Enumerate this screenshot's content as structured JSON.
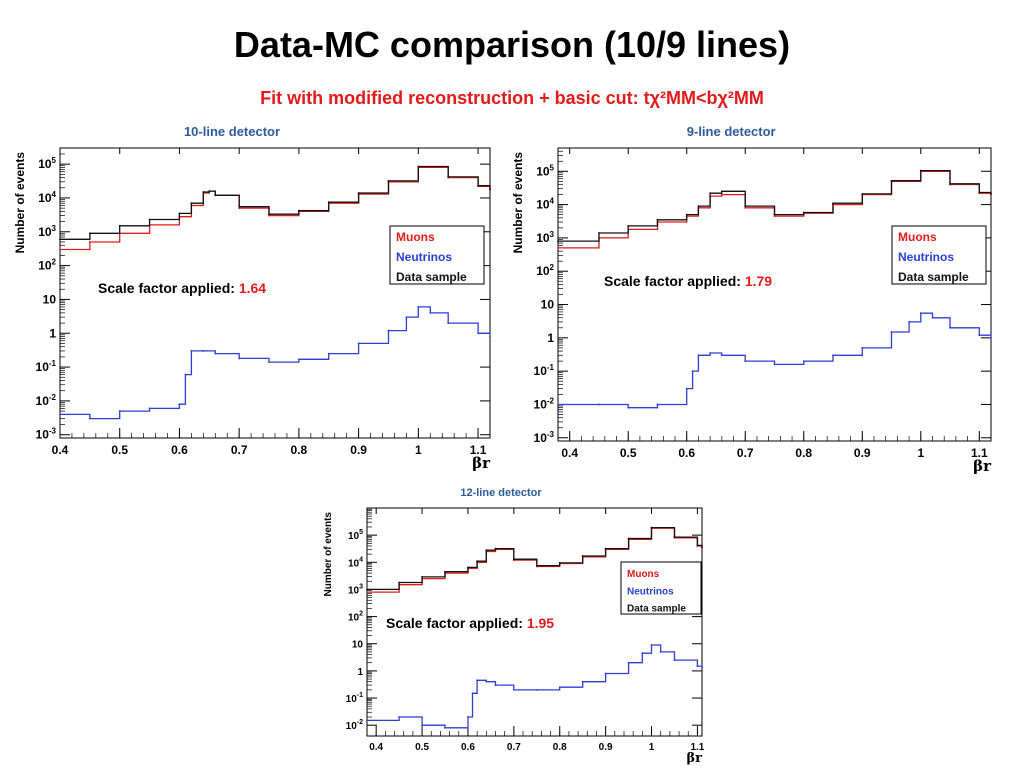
{
  "slide": {
    "title": "Data-MC comparison (10/9 lines)",
    "subtitle": "Fit with modified reconstruction + basic cut: tχ²MM<bχ²MM"
  },
  "colors": {
    "muons": "#e41a1a",
    "neutrinos": "#2b3fd6",
    "data": "#111111",
    "title": "#2f5b9a",
    "accent": "#e41a1a"
  },
  "chart_data": [
    {
      "type": "line",
      "title": "10-line detector",
      "xlabel": "βr",
      "ylabel": "Number of events",
      "xlim": [
        0.4,
        1.12
      ],
      "ylim": [
        0.0008,
        300000
      ],
      "yscale": "log",
      "xticks": [
        "0.4",
        "0.5",
        "0.6",
        "0.7",
        "0.8",
        "0.9",
        "1",
        "1.1"
      ],
      "yticks": [
        {
          "base": "10",
          "exp": "-3",
          "v": 0.001
        },
        {
          "base": "10",
          "exp": "-2",
          "v": 0.01
        },
        {
          "base": "10",
          "exp": "-1",
          "v": 0.1
        },
        {
          "base": "1",
          "exp": "",
          "v": 1
        },
        {
          "base": "10",
          "exp": "",
          "v": 10
        },
        {
          "base": "10",
          "exp": "2",
          "v": 100
        },
        {
          "base": "10",
          "exp": "3",
          "v": 1000
        },
        {
          "base": "10",
          "exp": "4",
          "v": 10000
        },
        {
          "base": "10",
          "exp": "5",
          "v": 100000
        }
      ],
      "legend": {
        "position": "right",
        "entries": [
          "Muons",
          "Neutrinos",
          "Data sample"
        ]
      },
      "scale_label": "Scale factor applied: ",
      "scale_value": "1.64",
      "series": [
        {
          "name": "Muons",
          "color": "#e41a1a",
          "x": [
            0.4,
            0.45,
            0.5,
            0.55,
            0.6,
            0.62,
            0.64,
            0.65,
            0.66,
            0.7,
            0.75,
            0.8,
            0.85,
            0.9,
            0.95,
            1.0,
            1.05,
            1.1,
            1.12
          ],
          "y": [
            300,
            500,
            900,
            1600,
            2800,
            6000,
            14000,
            16000,
            12000,
            5000,
            3000,
            4000,
            7000,
            13000,
            30000,
            80000,
            40000,
            22000,
            17000
          ]
        },
        {
          "name": "Data sample",
          "color": "#111111",
          "x": [
            0.4,
            0.45,
            0.5,
            0.55,
            0.6,
            0.62,
            0.64,
            0.65,
            0.66,
            0.7,
            0.75,
            0.8,
            0.85,
            0.9,
            0.95,
            1.0,
            1.05,
            1.1,
            1.12
          ],
          "y": [
            600,
            900,
            1500,
            2300,
            3500,
            7000,
            15000,
            16000,
            12000,
            5500,
            3300,
            4200,
            7500,
            14000,
            32000,
            85000,
            42000,
            23000,
            18000
          ]
        },
        {
          "name": "Neutrinos",
          "color": "#2b3fd6",
          "x": [
            0.4,
            0.45,
            0.5,
            0.55,
            0.6,
            0.61,
            0.62,
            0.64,
            0.66,
            0.7,
            0.75,
            0.8,
            0.85,
            0.9,
            0.95,
            0.98,
            1.0,
            1.02,
            1.05,
            1.1,
            1.12
          ],
          "y": [
            0.004,
            0.003,
            0.005,
            0.006,
            0.008,
            0.06,
            0.3,
            0.3,
            0.25,
            0.18,
            0.14,
            0.17,
            0.25,
            0.5,
            1.2,
            3.0,
            6.0,
            4.0,
            2.0,
            1.0,
            0.8
          ]
        }
      ]
    },
    {
      "type": "line",
      "title": "9-line detector",
      "xlabel": "βr",
      "ylabel": "Number of events",
      "xlim": [
        0.38,
        1.12
      ],
      "ylim": [
        0.0008,
        500000
      ],
      "yscale": "log",
      "xticks": [
        "0.4",
        "0.5",
        "0.6",
        "0.7",
        "0.8",
        "0.9",
        "1",
        "1.1"
      ],
      "yticks": [
        {
          "base": "10",
          "exp": "-3",
          "v": 0.001
        },
        {
          "base": "10",
          "exp": "-2",
          "v": 0.01
        },
        {
          "base": "10",
          "exp": "-1",
          "v": 0.1
        },
        {
          "base": "1",
          "exp": "",
          "v": 1
        },
        {
          "base": "10",
          "exp": "",
          "v": 10
        },
        {
          "base": "10",
          "exp": "2",
          "v": 100
        },
        {
          "base": "10",
          "exp": "3",
          "v": 1000
        },
        {
          "base": "10",
          "exp": "4",
          "v": 10000
        },
        {
          "base": "10",
          "exp": "5",
          "v": 100000
        }
      ],
      "legend": {
        "position": "right",
        "entries": [
          "Muons",
          "Neutrinos",
          "Data sample"
        ]
      },
      "scale_label": "Scale factor applied: ",
      "scale_value": "1.79",
      "series": [
        {
          "name": "Muons",
          "color": "#e41a1a",
          "x": [
            0.38,
            0.45,
            0.5,
            0.55,
            0.6,
            0.62,
            0.64,
            0.66,
            0.7,
            0.75,
            0.8,
            0.85,
            0.9,
            0.95,
            1.0,
            1.05,
            1.1,
            1.12
          ],
          "y": [
            500,
            1000,
            1800,
            3000,
            4500,
            8000,
            18000,
            20000,
            8000,
            4500,
            5500,
            10000,
            20000,
            50000,
            100000,
            40000,
            22000,
            20000
          ]
        },
        {
          "name": "Data sample",
          "color": "#111111",
          "x": [
            0.38,
            0.45,
            0.5,
            0.55,
            0.6,
            0.62,
            0.64,
            0.66,
            0.7,
            0.75,
            0.8,
            0.85,
            0.9,
            0.95,
            1.0,
            1.05,
            1.1,
            1.12
          ],
          "y": [
            800,
            1400,
            2300,
            3500,
            5000,
            9000,
            22000,
            25000,
            9000,
            5000,
            5800,
            11000,
            21000,
            52000,
            105000,
            42000,
            23000,
            21000
          ]
        },
        {
          "name": "Neutrinos",
          "color": "#2b3fd6",
          "x": [
            0.38,
            0.45,
            0.5,
            0.55,
            0.6,
            0.61,
            0.62,
            0.64,
            0.66,
            0.7,
            0.75,
            0.8,
            0.85,
            0.9,
            0.95,
            0.98,
            1.0,
            1.02,
            1.05,
            1.1,
            1.12
          ],
          "y": [
            0.01,
            0.01,
            0.008,
            0.01,
            0.03,
            0.1,
            0.3,
            0.35,
            0.3,
            0.2,
            0.16,
            0.2,
            0.3,
            0.5,
            1.5,
            3.0,
            5.5,
            4.0,
            2.0,
            1.2,
            1.0
          ]
        }
      ]
    },
    {
      "type": "line",
      "title": "12-line detector",
      "xlabel": "βr",
      "ylabel": "Number of events",
      "xlim": [
        0.38,
        1.11
      ],
      "ylim": [
        0.004,
        1000000
      ],
      "yscale": "log",
      "xticks": [
        "0.4",
        "0.5",
        "0.6",
        "0.7",
        "0.8",
        "0.9",
        "1",
        "1.1"
      ],
      "yticks": [
        {
          "base": "10",
          "exp": "-2",
          "v": 0.01
        },
        {
          "base": "10",
          "exp": "-1",
          "v": 0.1
        },
        {
          "base": "1",
          "exp": "",
          "v": 1
        },
        {
          "base": "10",
          "exp": "",
          "v": 10
        },
        {
          "base": "10",
          "exp": "2",
          "v": 100
        },
        {
          "base": "10",
          "exp": "3",
          "v": 1000
        },
        {
          "base": "10",
          "exp": "4",
          "v": 10000
        },
        {
          "base": "10",
          "exp": "5",
          "v": 100000
        }
      ],
      "legend": {
        "position": "right",
        "entries": [
          "Muons",
          "Neutrinos",
          "Data sample"
        ]
      },
      "scale_label": "Scale factor applied: ",
      "scale_value": "1.95",
      "series": [
        {
          "name": "Muons",
          "color": "#e41a1a",
          "x": [
            0.38,
            0.45,
            0.5,
            0.55,
            0.6,
            0.62,
            0.64,
            0.66,
            0.7,
            0.75,
            0.8,
            0.85,
            0.9,
            0.95,
            1.0,
            1.05,
            1.1,
            1.11
          ],
          "y": [
            800,
            1500,
            2500,
            4000,
            6000,
            10000,
            25000,
            30000,
            12000,
            7000,
            9000,
            16000,
            30000,
            70000,
            180000,
            80000,
            40000,
            35000
          ]
        },
        {
          "name": "Data sample",
          "color": "#111111",
          "x": [
            0.38,
            0.45,
            0.5,
            0.55,
            0.6,
            0.62,
            0.64,
            0.66,
            0.7,
            0.75,
            0.8,
            0.85,
            0.9,
            0.95,
            1.0,
            1.05,
            1.1,
            1.11
          ],
          "y": [
            1000,
            1800,
            2900,
            4500,
            6500,
            11000,
            28000,
            32000,
            13000,
            7500,
            9500,
            17000,
            32000,
            75000,
            190000,
            85000,
            42000,
            36000
          ]
        },
        {
          "name": "Neutrinos",
          "color": "#2b3fd6",
          "x": [
            0.38,
            0.45,
            0.5,
            0.55,
            0.6,
            0.61,
            0.62,
            0.64,
            0.66,
            0.7,
            0.75,
            0.8,
            0.85,
            0.9,
            0.95,
            0.98,
            1.0,
            1.02,
            1.05,
            1.1,
            1.11
          ],
          "y": [
            0.015,
            0.02,
            0.01,
            0.008,
            0.02,
            0.15,
            0.45,
            0.4,
            0.3,
            0.2,
            0.2,
            0.25,
            0.4,
            0.8,
            2.0,
            4.5,
            9.0,
            5.0,
            2.5,
            1.5,
            1.3
          ]
        }
      ]
    }
  ]
}
